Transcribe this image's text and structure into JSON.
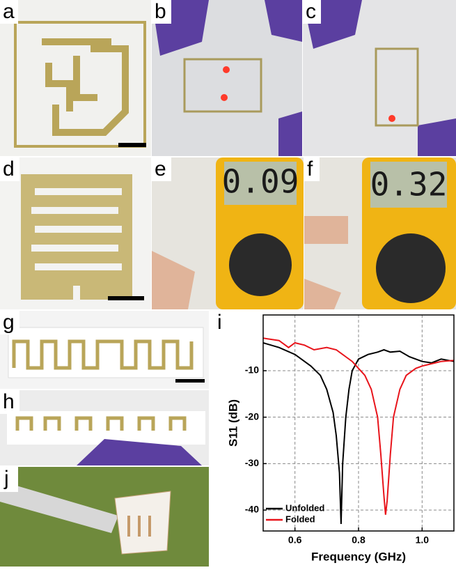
{
  "panels": {
    "a": "a",
    "b": "b",
    "c": "c",
    "d": "d",
    "e": "e",
    "f": "f",
    "g": "g",
    "h": "h",
    "i": "i",
    "j": "j",
    "e_reading": "0.09",
    "f_reading": "0.32"
  },
  "chart_data": {
    "type": "line",
    "xlabel": "Frequency (GHz)",
    "ylabel": "S11 (dB)",
    "xlim": [
      0.5,
      1.1
    ],
    "ylim": [
      -44.5,
      2
    ],
    "xticks": [
      0.6,
      0.8,
      {
        "value": 1,
        "label": "1.0"
      }
    ],
    "yticks": [
      -10,
      -20,
      -30,
      -40
    ],
    "grid": true,
    "legend": "lower-left",
    "series": [
      {
        "name": "Unfolded",
        "color": "#000000",
        "x": [
          0.5,
          0.55,
          0.6,
          0.65,
          0.68,
          0.7,
          0.72,
          0.73,
          0.74,
          0.745,
          0.75,
          0.76,
          0.77,
          0.78,
          0.8,
          0.83,
          0.86,
          0.88,
          0.9,
          0.93,
          0.96,
          1.0,
          1.03,
          1.06,
          1.1
        ],
        "values": [
          -4,
          -5,
          -6.5,
          -9,
          -11,
          -14,
          -19,
          -24,
          -32,
          -43,
          -30,
          -20,
          -14,
          -10,
          -7.5,
          -6.5,
          -6,
          -5.5,
          -6,
          -5.8,
          -7,
          -8,
          -8.3,
          -7.5,
          -8
        ]
      },
      {
        "name": "Folded",
        "color": "#e8141b",
        "x": [
          0.5,
          0.55,
          0.58,
          0.6,
          0.63,
          0.66,
          0.7,
          0.73,
          0.76,
          0.78,
          0.8,
          0.82,
          0.84,
          0.86,
          0.87,
          0.88,
          0.885,
          0.89,
          0.9,
          0.91,
          0.93,
          0.95,
          0.98,
          1.0,
          1.03,
          1.06,
          1.1
        ],
        "values": [
          -3,
          -3.5,
          -5,
          -4,
          -4.5,
          -5.5,
          -5,
          -5.5,
          -7,
          -8,
          -9.5,
          -11,
          -14,
          -20,
          -28,
          -37,
          -41,
          -38,
          -28,
          -20,
          -14,
          -11,
          -9.5,
          -9,
          -8.5,
          -8,
          -7.8
        ]
      }
    ]
  }
}
